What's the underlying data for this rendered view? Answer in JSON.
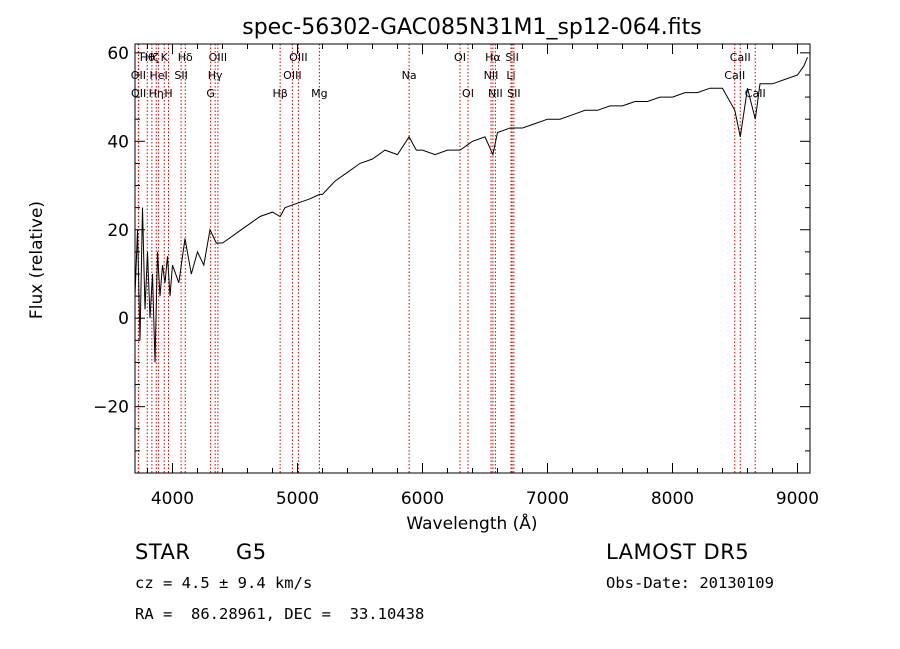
{
  "chart_data": {
    "type": "line",
    "title": "spec-56302-GAC085N31M1_sp12-064.fits",
    "xlabel": "Wavelength (Å)",
    "ylabel": "Flux (relative)",
    "xlim": [
      3700,
      9100
    ],
    "ylim": [
      -35,
      62
    ],
    "xticks": [
      4000,
      5000,
      6000,
      7000,
      8000,
      9000
    ],
    "xtick_labels": [
      "4000",
      "5000",
      "6000",
      "7000",
      "8000",
      "9000"
    ],
    "yticks": [
      -20,
      0,
      20,
      40,
      60
    ],
    "ytick_labels": [
      "−20",
      "0",
      "20",
      "40",
      "60"
    ],
    "grid": false,
    "legend": "none",
    "line_color": "#000000",
    "marker_color": "#cc0000",
    "series": [
      {
        "x": [
          3700,
          3720,
          3740,
          3760,
          3780,
          3800,
          3820,
          3840,
          3860,
          3880,
          3900,
          3920,
          3940,
          3960,
          3980,
          4000,
          4050,
          4100,
          4150,
          4200,
          4250,
          4300,
          4350,
          4400,
          4450,
          4500,
          4600,
          4700,
          4800,
          4861,
          4900,
          5000,
          5100,
          5175,
          5200,
          5300,
          5400,
          5500,
          5600,
          5700,
          5800,
          5893,
          5950,
          6000,
          6100,
          6200,
          6300,
          6400,
          6500,
          6563,
          6600,
          6700,
          6800,
          6900,
          7000,
          7100,
          7200,
          7300,
          7400,
          7500,
          7600,
          7700,
          7800,
          7900,
          8000,
          8100,
          8200,
          8300,
          8400,
          8498,
          8542,
          8600,
          8662,
          8700,
          8800,
          8900,
          9000,
          9050,
          9080
        ],
        "values": [
          5,
          20,
          -5,
          25,
          2,
          15,
          0,
          10,
          -10,
          15,
          5,
          12,
          8,
          14,
          5,
          12,
          8,
          18,
          10,
          15,
          12,
          20,
          17,
          17,
          18,
          19,
          21,
          23,
          24,
          23,
          25,
          26,
          27,
          28,
          28,
          31,
          33,
          35,
          36,
          38,
          37,
          41,
          38,
          38,
          37,
          38,
          38,
          40,
          41,
          37,
          42,
          43,
          43,
          44,
          45,
          45,
          46,
          47,
          47,
          48,
          48,
          49,
          49,
          50,
          50,
          51,
          51,
          52,
          52,
          47,
          41,
          52,
          45,
          53,
          53,
          54,
          55,
          57,
          59
        ],
        "point_data_labels": []
      }
    ],
    "line_markers": [
      {
        "label": "Hθ",
        "x": 3798,
        "row": 0
      },
      {
        "label": "OII",
        "x": 3727,
        "row": 1
      },
      {
        "label": "OII",
        "x": 3729,
        "row": 2
      },
      {
        "label": "Hζ",
        "x": 3835,
        "row": 0
      },
      {
        "label": "K",
        "x": 3934,
        "row": 0
      },
      {
        "label": "HeI",
        "x": 3889,
        "row": 1
      },
      {
        "label": "Hη",
        "x": 3870,
        "row": 2
      },
      {
        "label": "H",
        "x": 3968,
        "row": 2
      },
      {
        "label": "Hδ",
        "x": 4102,
        "row": 0
      },
      {
        "label": "SII",
        "x": 4069,
        "row": 1
      },
      {
        "label": "OIII",
        "x": 4363,
        "row": 0
      },
      {
        "label": "Hγ",
        "x": 4341,
        "row": 1
      },
      {
        "label": "G",
        "x": 4305,
        "row": 2
      },
      {
        "label": "OIII",
        "x": 5007,
        "row": 0
      },
      {
        "label": "OIII",
        "x": 4959,
        "row": 1
      },
      {
        "label": "Hβ",
        "x": 4861,
        "row": 2
      },
      {
        "label": "Mg",
        "x": 5175,
        "row": 2
      },
      {
        "label": "Na",
        "x": 5893,
        "row": 1
      },
      {
        "label": "OI",
        "x": 6300,
        "row": 0
      },
      {
        "label": "OI",
        "x": 6364,
        "row": 2
      },
      {
        "label": "Hα",
        "x": 6563,
        "row": 0
      },
      {
        "label": "NII",
        "x": 6548,
        "row": 1
      },
      {
        "label": "NII",
        "x": 6583,
        "row": 2
      },
      {
        "label": "SII",
        "x": 6717,
        "row": 0
      },
      {
        "label": "Li",
        "x": 6708,
        "row": 1
      },
      {
        "label": "SII",
        "x": 6731,
        "row": 2
      },
      {
        "label": "CaII",
        "x": 8542,
        "row": 0
      },
      {
        "label": "CaII",
        "x": 8498,
        "row": 1
      },
      {
        "label": "CaII",
        "x": 8662,
        "row": 2
      }
    ]
  },
  "info": {
    "object_class": "STAR",
    "subclass": "G5",
    "survey": "LAMOST DR5",
    "cz": "cz = 4.5 ± 9.4 km/s",
    "obs_date": "Obs-Date: 20130109",
    "coords": "RA =  86.28961, DEC =  33.10438"
  }
}
